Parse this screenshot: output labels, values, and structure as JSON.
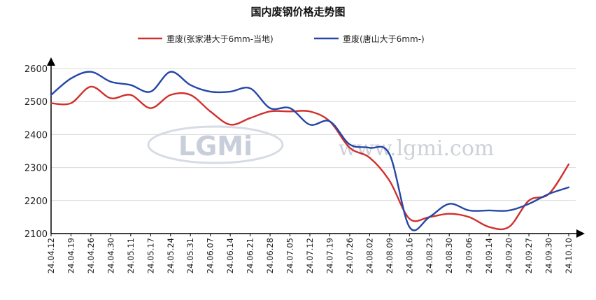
{
  "chart_data": {
    "type": "line",
    "title": "国内废钢价格走势图",
    "xlabel": "",
    "ylabel": "",
    "ylim": [
      2100,
      2600
    ],
    "yticks": [
      2100,
      2200,
      2300,
      2400,
      2500,
      2600
    ],
    "grid": "horizontal",
    "legend_position": "top-center",
    "x": [
      "24.04.12",
      "24.04.19",
      "24.04.26",
      "24.04.30",
      "24.05.11",
      "24.05.17",
      "24.05.24",
      "24.05.31",
      "24.06.07",
      "24.06.14",
      "24.06.21",
      "24.06.28",
      "24.07.05",
      "24.07.12",
      "24.07.19",
      "24.07.26",
      "24.08.02",
      "24.08.09",
      "24.08.16",
      "24.08.23",
      "24.08.30",
      "24.09.06",
      "24.09.14",
      "24.09.20",
      "24.09.27",
      "24.09.30",
      "24.10.10"
    ],
    "series": [
      {
        "name": "重废(张家港大于6mm-当地)",
        "color": "#d0312d",
        "values": [
          2495,
          2495,
          2545,
          2510,
          2520,
          2480,
          2520,
          2520,
          2470,
          2430,
          2450,
          2470,
          2470,
          2470,
          2440,
          2360,
          2330,
          2260,
          2145,
          2150,
          2160,
          2150,
          2120,
          2120,
          2200,
          2220,
          2310
        ]
      },
      {
        "name": "重废(唐山大于6mm-)",
        "color": "#2447a8",
        "values": [
          2520,
          2570,
          2590,
          2560,
          2550,
          2530,
          2590,
          2550,
          2530,
          2530,
          2540,
          2480,
          2480,
          2430,
          2440,
          2370,
          2360,
          2340,
          2120,
          2150,
          2190,
          2170,
          2170,
          2170,
          2190,
          2220,
          2240
        ]
      }
    ]
  },
  "watermark": {
    "logo_text": "LGMi",
    "site_text": "www.lgmi.com"
  }
}
